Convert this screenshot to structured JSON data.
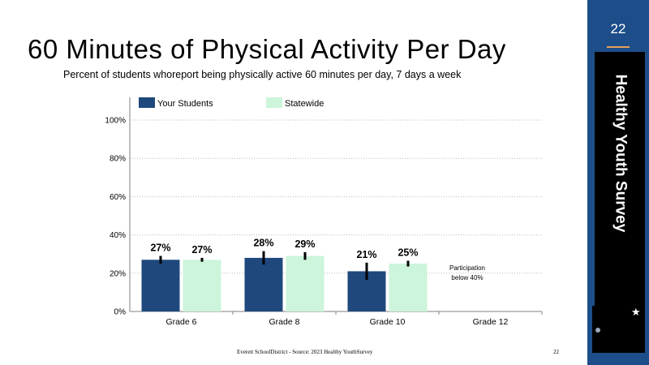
{
  "slide": {
    "title": "60  Minutes  of  Physical  Activity  Per  Day",
    "subtitle": "Percent of students whoreport  being physically active 60 minutes per day, 7 days a week",
    "page_number": "22",
    "sidebar_label": "Healthy Youth Survey",
    "footer_source": "Everett   SchoolDistrict   -  Source:   2023  Healthy   YouthSurvey",
    "footer_page": "22",
    "accent_colors": {
      "sidebar": "#1d4e8a",
      "divider": "#e8a25a"
    }
  },
  "chart_data": {
    "type": "bar",
    "categories": [
      "Grade 6",
      "Grade 8",
      "Grade 10",
      "Grade 12"
    ],
    "series": [
      {
        "name": "Your Students",
        "color": "#1f497d",
        "values": [
          27,
          28,
          21,
          null
        ],
        "labels": [
          "27%",
          "28%",
          "21%",
          ""
        ],
        "error": [
          4,
          7,
          9,
          null
        ]
      },
      {
        "name": "Statewide",
        "color": "#ccf5dc",
        "values": [
          27,
          29,
          25,
          null
        ],
        "labels": [
          "27%",
          "29%",
          "25%",
          ""
        ],
        "error": [
          2,
          4,
          3,
          null
        ]
      }
    ],
    "yticks": [
      "0%",
      "20%",
      "40%",
      "60%",
      "80%",
      "100%"
    ],
    "ylim": [
      0,
      100
    ],
    "grid": "horizontal dotted",
    "legend": "top",
    "annotation": [
      "Participation",
      "below 40%"
    ]
  }
}
